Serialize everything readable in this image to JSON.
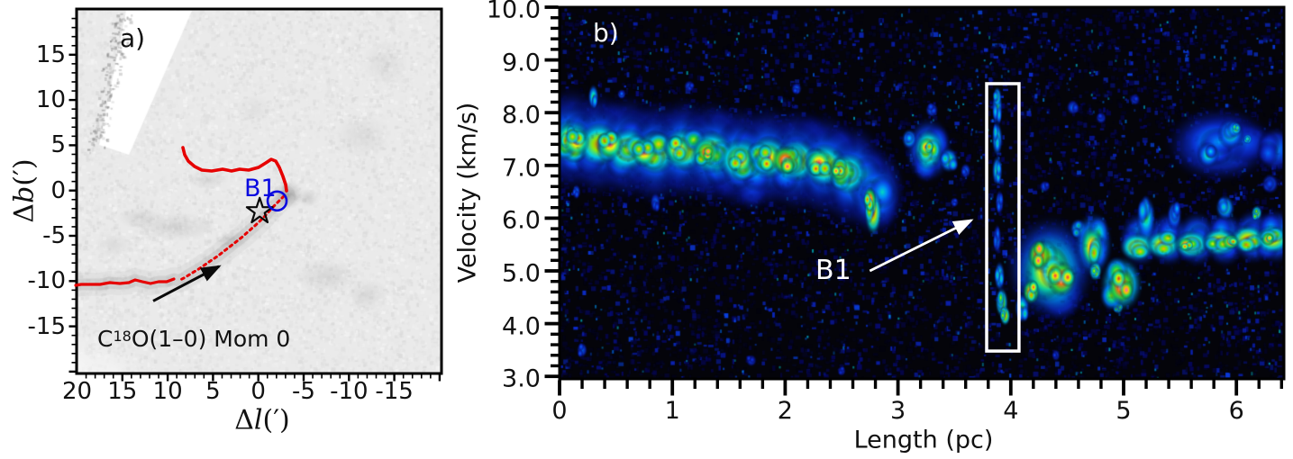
{
  "figure": {
    "panels": {
      "a": {
        "label": "a)",
        "xlabel": {
          "delta": "Δ",
          "letter": "l",
          "units": "(′)"
        },
        "ylabel": {
          "delta": "Δ",
          "letter": "b",
          "units": "(′)"
        },
        "annotation": {
          "element": "C",
          "isotope": "18",
          "rest": "O(1–0) Mom 0"
        },
        "b1_label": "B1"
      },
      "b": {
        "label": "b)",
        "xlabel": "Length (pc)",
        "ylabel": "Velocity (km/s)",
        "b1_label": "B1"
      }
    }
  },
  "chart_data": [
    {
      "panel": "a",
      "type": "heatmap",
      "description": "C18O(1-0) integrated-intensity (moment 0) grayscale map with filament spine, star marker and B1 position",
      "xlabel": "Delta l (arcmin)",
      "ylabel": "Delta b (arcmin)",
      "xlim": [
        20.3,
        -20.0
      ],
      "ylim": [
        -20.3,
        20.2
      ],
      "x_axis_reversed": true,
      "xticks": [
        "20",
        "15",
        "10",
        "5",
        "0",
        "-5",
        "-10",
        "-15"
      ],
      "xtick_values": [
        20,
        15,
        10,
        5,
        0,
        -5,
        -10,
        -15
      ],
      "yticks": [
        "15",
        "10",
        "5",
        "0",
        "-5",
        "-10",
        "-15"
      ],
      "ytick_values": [
        15,
        10,
        5,
        0,
        -5,
        -10,
        -15
      ],
      "minor_tick_step": 1,
      "spine_color": "#e60000",
      "b1_color": "#0a0ae0",
      "spine_solid_upper": [
        [
          8.32,
          4.74
        ],
        [
          8.12,
          3.95
        ],
        [
          7.72,
          3.25
        ],
        [
          7.03,
          2.65
        ],
        [
          6.23,
          2.26
        ],
        [
          5.14,
          2.16
        ],
        [
          3.95,
          2.36
        ],
        [
          2.95,
          2.16
        ],
        [
          2.06,
          2.36
        ],
        [
          1.06,
          2.26
        ],
        [
          -0.03,
          2.55
        ],
        [
          -0.83,
          3.05
        ],
        [
          -1.42,
          3.45
        ],
        [
          -1.92,
          3.25
        ],
        [
          -2.32,
          2.55
        ],
        [
          -2.71,
          1.56
        ],
        [
          -3.01,
          0.67
        ],
        [
          -3.11,
          -0.03
        ]
      ],
      "spine_dotted": [
        [
          -2.81,
          -0.63
        ],
        [
          -2.22,
          -1.22
        ],
        [
          -1.52,
          -1.92
        ],
        [
          -0.73,
          -2.81
        ],
        [
          0.07,
          -3.61
        ],
        [
          0.96,
          -4.4
        ],
        [
          1.86,
          -5.2
        ],
        [
          2.75,
          -5.89
        ],
        [
          3.65,
          -6.59
        ],
        [
          4.54,
          -7.29
        ],
        [
          5.44,
          -7.88
        ],
        [
          6.43,
          -8.58
        ],
        [
          7.42,
          -9.17
        ],
        [
          8.22,
          -9.67
        ],
        [
          8.82,
          -9.97
        ]
      ],
      "spine_solid_lower": [
        [
          9.31,
          -9.77
        ],
        [
          10.11,
          -10.07
        ],
        [
          11.0,
          -10.07
        ],
        [
          11.9,
          -10.27
        ],
        [
          12.79,
          -10.07
        ],
        [
          13.59,
          -9.87
        ],
        [
          14.28,
          -10.17
        ],
        [
          15.28,
          -10.27
        ],
        [
          16.37,
          -10.17
        ],
        [
          17.46,
          -10.37
        ],
        [
          18.56,
          -10.37
        ],
        [
          19.55,
          -10.37
        ],
        [
          20.15,
          -10.47
        ]
      ],
      "b1_circle": {
        "dl": -2.07,
        "db": -1.15
      },
      "star": {
        "dl": -0.15,
        "db": -2.3
      },
      "arrow": {
        "from": [
          11.6,
          -12.2
        ],
        "to": [
          4.34,
          -8.38
        ]
      },
      "masked_stripe": [
        [
          14.58,
          19.85
        ],
        [
          7.33,
          19.85
        ],
        [
          14.28,
          3.95
        ],
        [
          17.56,
          5.04
        ]
      ],
      "dark_smudges": [
        [
          -3.4,
          -0.5,
          1.5,
          1.5,
          0.28
        ],
        [
          -5.5,
          -0.8,
          1.2,
          1.0,
          0.14
        ],
        [
          9.0,
          -4.0,
          4.5,
          1.6,
          0.12
        ],
        [
          13.0,
          -3.0,
          2.5,
          1.2,
          0.1
        ],
        [
          3.0,
          -5.5,
          2.0,
          1.0,
          0.1
        ],
        [
          -7.5,
          -9.5,
          3.5,
          2.0,
          0.1
        ],
        [
          -12.0,
          -11.5,
          2.5,
          1.8,
          0.09
        ],
        [
          -11.5,
          6.0,
          3.0,
          2.5,
          0.08
        ],
        [
          -14.0,
          14.0,
          2.5,
          2.5,
          0.07
        ],
        [
          5.6,
          1.2,
          2.2,
          1.0,
          0.1
        ],
        [
          16.0,
          -6.0,
          2.0,
          1.5,
          0.08
        ],
        [
          0.5,
          9.0,
          2.0,
          1.5,
          0.06
        ]
      ]
    },
    {
      "panel": "b",
      "type": "heatmap",
      "description": "Position-velocity diagram along the filament spine; white box marks bridge feature B1",
      "xlabel": "Length (pc)",
      "ylabel": "Velocity (km/s)",
      "xlim": [
        0,
        6.42
      ],
      "ylim": [
        2.95,
        10.0
      ],
      "xticks": [
        "0",
        "1",
        "2",
        "3",
        "4",
        "5",
        "6"
      ],
      "xtick_values": [
        0,
        1,
        2,
        3,
        4,
        5,
        6
      ],
      "yticks": [
        "10.0",
        "9.0",
        "8.0",
        "7.0",
        "6.0",
        "5.0",
        "4.0",
        "3.0"
      ],
      "ytick_values": [
        10,
        9,
        8,
        7,
        6,
        5,
        4,
        3
      ],
      "minor_tick_step": 0.2,
      "colormap": "jet",
      "b1_rect": {
        "x": [
          3.786,
          4.073
        ],
        "v": [
          3.48,
          8.55
        ]
      },
      "arrow": {
        "from": [
          2.75,
          5.0
        ],
        "to": [
          3.65,
          5.96
        ]
      },
      "features": [
        [
          0.1,
          7.5,
          0.32,
          1.05,
          0.38
        ],
        [
          0.35,
          7.4,
          0.32,
          1.05,
          0.38
        ],
        [
          0.6,
          7.35,
          0.32,
          1.05,
          0.38
        ],
        [
          0.85,
          7.25,
          0.32,
          1.05,
          0.38
        ],
        [
          1.1,
          7.3,
          0.32,
          1.05,
          0.38
        ],
        [
          1.35,
          7.25,
          0.32,
          1.05,
          0.38
        ],
        [
          1.6,
          7.15,
          0.32,
          1.05,
          0.38
        ],
        [
          1.85,
          7.15,
          0.32,
          1.05,
          0.38
        ],
        [
          2.1,
          7.1,
          0.32,
          1.05,
          0.38
        ],
        [
          2.35,
          7.0,
          0.32,
          1.05,
          0.38
        ],
        [
          2.6,
          6.8,
          0.32,
          1.05,
          0.38
        ],
        [
          2.8,
          6.5,
          0.28,
          0.9,
          0.38
        ],
        [
          0.1,
          7.5,
          0.26,
          0.7,
          0.55
        ],
        [
          0.35,
          7.4,
          0.26,
          0.7,
          0.55
        ],
        [
          0.6,
          7.35,
          0.26,
          0.7,
          0.55
        ],
        [
          0.85,
          7.25,
          0.26,
          0.7,
          0.55
        ],
        [
          1.1,
          7.3,
          0.26,
          0.7,
          0.55
        ],
        [
          1.35,
          7.25,
          0.26,
          0.7,
          0.55
        ],
        [
          1.6,
          7.15,
          0.26,
          0.7,
          0.55
        ],
        [
          1.85,
          7.15,
          0.26,
          0.7,
          0.55
        ],
        [
          2.1,
          7.1,
          0.26,
          0.7,
          0.55
        ],
        [
          2.35,
          7.0,
          0.26,
          0.7,
          0.55
        ],
        [
          2.6,
          6.8,
          0.26,
          0.7,
          0.55
        ],
        [
          2.8,
          6.45,
          0.22,
          0.6,
          0.55
        ],
        [
          0.1,
          7.45,
          0.2,
          0.42,
          0.82
        ],
        [
          0.35,
          7.4,
          0.2,
          0.42,
          0.82
        ],
        [
          0.6,
          7.3,
          0.2,
          0.42,
          0.82
        ],
        [
          0.85,
          7.25,
          0.2,
          0.42,
          0.82
        ],
        [
          1.1,
          7.3,
          0.2,
          0.42,
          0.82
        ],
        [
          1.35,
          7.25,
          0.2,
          0.42,
          0.82
        ],
        [
          1.6,
          7.1,
          0.2,
          0.42,
          0.82
        ],
        [
          1.85,
          7.15,
          0.2,
          0.42,
          0.82
        ],
        [
          2.1,
          7.1,
          0.2,
          0.42,
          0.82
        ],
        [
          2.35,
          7.0,
          0.2,
          0.42,
          0.82
        ],
        [
          2.55,
          6.85,
          0.18,
          0.4,
          0.82
        ],
        [
          0.15,
          7.45,
          0.12,
          0.28,
          0.9
        ],
        [
          0.45,
          7.4,
          0.12,
          0.28,
          0.9
        ],
        [
          0.75,
          7.25,
          0.12,
          0.28,
          0.9
        ],
        [
          1.05,
          7.3,
          0.12,
          0.28,
          0.9
        ],
        [
          1.3,
          7.25,
          0.12,
          0.28,
          0.9
        ],
        [
          1.6,
          7.1,
          0.12,
          0.28,
          0.9
        ],
        [
          1.85,
          7.15,
          0.12,
          0.28,
          0.9
        ],
        [
          2.05,
          7.1,
          0.12,
          0.28,
          0.9
        ],
        [
          2.3,
          7.05,
          0.12,
          0.28,
          0.9
        ],
        [
          2.5,
          6.9,
          0.12,
          0.28,
          0.9
        ],
        [
          1.3,
          7.25,
          0.08,
          0.18,
          1.0
        ],
        [
          2.0,
          7.1,
          0.12,
          0.28,
          1.0
        ],
        [
          2.48,
          6.9,
          0.08,
          0.2,
          1.0
        ],
        [
          2.75,
          6.35,
          0.06,
          0.25,
          0.97
        ],
        [
          2.78,
          6.1,
          0.08,
          0.45,
          0.85
        ],
        [
          0.07,
          7.5,
          0.08,
          0.3,
          0.88
        ],
        [
          3.27,
          7.3,
          0.22,
          0.65,
          0.5
        ],
        [
          3.27,
          7.3,
          0.13,
          0.4,
          0.85
        ],
        [
          3.25,
          7.35,
          0.07,
          0.18,
          0.92
        ],
        [
          3.45,
          7.1,
          0.09,
          0.25,
          0.62
        ],
        [
          3.1,
          7.5,
          0.07,
          0.2,
          0.6
        ],
        [
          3.88,
          8.3,
          0.04,
          0.2,
          0.65
        ],
        [
          3.88,
          8.1,
          0.05,
          0.35,
          0.6
        ],
        [
          3.88,
          7.5,
          0.05,
          0.35,
          0.6
        ],
        [
          3.88,
          6.9,
          0.05,
          0.3,
          0.6
        ],
        [
          3.9,
          6.3,
          0.04,
          0.25,
          0.45
        ],
        [
          3.88,
          5.6,
          0.04,
          0.3,
          0.45
        ],
        [
          3.9,
          4.9,
          0.05,
          0.3,
          0.6
        ],
        [
          3.92,
          4.4,
          0.06,
          0.3,
          0.75
        ],
        [
          3.95,
          4.15,
          0.05,
          0.2,
          0.8
        ],
        [
          4.35,
          5.05,
          0.42,
          1.05,
          0.5
        ],
        [
          4.35,
          5.0,
          0.3,
          0.8,
          0.75
        ],
        [
          4.33,
          5.0,
          0.22,
          0.6,
          0.9
        ],
        [
          4.25,
          5.3,
          0.1,
          0.3,
          1.0
        ],
        [
          4.45,
          4.85,
          0.13,
          0.35,
          1.0
        ],
        [
          4.18,
          4.6,
          0.08,
          0.25,
          0.95
        ],
        [
          4.1,
          4.3,
          0.07,
          0.3,
          0.6
        ],
        [
          4.6,
          5.8,
          0.08,
          0.2,
          0.6
        ],
        [
          4.73,
          5.5,
          0.18,
          0.65,
          0.62
        ],
        [
          4.72,
          5.45,
          0.1,
          0.4,
          0.92
        ],
        [
          4.75,
          5.0,
          0.06,
          0.2,
          0.8
        ],
        [
          4.98,
          4.75,
          0.2,
          0.55,
          0.75
        ],
        [
          4.98,
          4.7,
          0.12,
          0.35,
          1.0
        ],
        [
          4.95,
          4.3,
          0.05,
          0.12,
          0.74
        ],
        [
          5.15,
          5.6,
          0.2,
          0.55,
          0.5
        ],
        [
          5.4,
          5.6,
          0.2,
          0.55,
          0.5
        ],
        [
          5.65,
          5.6,
          0.2,
          0.55,
          0.5
        ],
        [
          5.9,
          5.6,
          0.2,
          0.55,
          0.5
        ],
        [
          6.15,
          5.65,
          0.2,
          0.55,
          0.5
        ],
        [
          6.35,
          5.65,
          0.2,
          0.55,
          0.5
        ],
        [
          5.12,
          5.45,
          0.16,
          0.28,
          0.85
        ],
        [
          5.35,
          5.5,
          0.16,
          0.28,
          0.85
        ],
        [
          5.6,
          5.5,
          0.16,
          0.28,
          0.85
        ],
        [
          5.85,
          5.55,
          0.16,
          0.28,
          0.85
        ],
        [
          6.1,
          5.6,
          0.16,
          0.28,
          0.85
        ],
        [
          6.32,
          5.6,
          0.16,
          0.28,
          0.85
        ],
        [
          5.55,
          5.5,
          0.07,
          0.14,
          0.95
        ],
        [
          5.95,
          5.55,
          0.08,
          0.15,
          0.95
        ],
        [
          6.28,
          5.6,
          0.06,
          0.13,
          0.95
        ],
        [
          5.2,
          6.0,
          0.09,
          0.45,
          0.6
        ],
        [
          5.45,
          6.05,
          0.07,
          0.3,
          0.52
        ],
        [
          5.9,
          6.2,
          0.09,
          0.25,
          0.62
        ],
        [
          6.18,
          6.1,
          0.05,
          0.15,
          0.78
        ],
        [
          5.85,
          7.4,
          0.5,
          0.75,
          0.4
        ],
        [
          5.8,
          7.45,
          0.3,
          0.5,
          0.48
        ],
        [
          5.95,
          7.6,
          0.12,
          0.3,
          0.6
        ],
        [
          5.75,
          7.2,
          0.1,
          0.25,
          0.58
        ],
        [
          6.0,
          7.7,
          0.045,
          0.12,
          0.75
        ],
        [
          6.1,
          7.5,
          0.04,
          0.1,
          0.72
        ],
        [
          6.35,
          7.3,
          0.18,
          0.45,
          0.42
        ],
        [
          6.3,
          6.65,
          0.08,
          0.2,
          0.42
        ],
        [
          3.3,
          8.05,
          0.06,
          0.15,
          0.42
        ],
        [
          2.1,
          8.45,
          0.05,
          0.12,
          0.4
        ],
        [
          1.15,
          8.5,
          0.05,
          0.12,
          0.38
        ],
        [
          0.3,
          8.3,
          0.05,
          0.25,
          0.6
        ],
        [
          0.55,
          8.35,
          0.04,
          0.1,
          0.45
        ],
        [
          4.55,
          8.1,
          0.06,
          0.15,
          0.4
        ],
        [
          4.8,
          7.9,
          0.05,
          0.12,
          0.38
        ],
        [
          5.1,
          8.25,
          0.05,
          0.12,
          0.36
        ],
        [
          3.6,
          6.9,
          0.05,
          0.15,
          0.4
        ],
        [
          3.5,
          6.3,
          0.04,
          0.1,
          0.38
        ],
        [
          4.3,
          6.6,
          0.05,
          0.12,
          0.36
        ],
        [
          1.7,
          3.3,
          0.05,
          0.12,
          0.35
        ],
        [
          2.5,
          3.1,
          0.04,
          0.1,
          0.33
        ],
        [
          0.2,
          3.5,
          0.05,
          0.15,
          0.4
        ],
        [
          4.4,
          3.4,
          0.04,
          0.12,
          0.35
        ],
        [
          0.85,
          6.3,
          0.05,
          0.2,
          0.4
        ],
        [
          0.15,
          6.5,
          0.04,
          0.15,
          0.42
        ]
      ]
    }
  ]
}
